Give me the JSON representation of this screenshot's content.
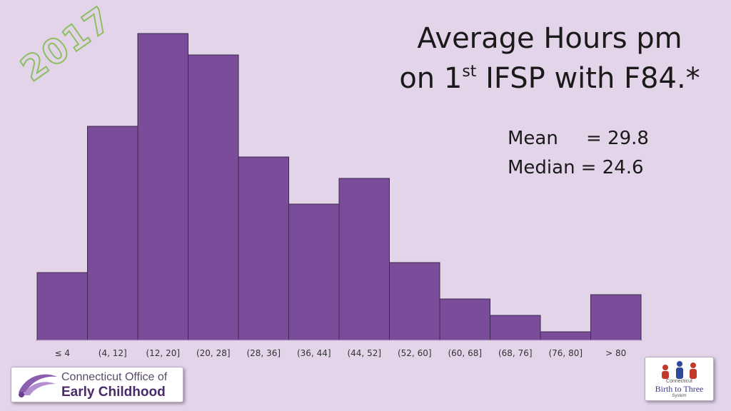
{
  "title": {
    "line1": "Average Hours pm",
    "line2_prefix": "on 1",
    "line2_sup": "st",
    "line2_suffix": " IFSP with F84.*"
  },
  "stats": {
    "mean_label": "Mean",
    "mean_value": "= 29.8",
    "median_label": "Median",
    "median_value": "= 24.6"
  },
  "stamp": "2017",
  "logos": {
    "left_line1": "Connecticut Office of",
    "left_line2": "Early Childhood",
    "right_line1": "Connecticut",
    "right_line2": "Birth to Three",
    "right_line3": "System"
  },
  "colors": {
    "bar_fill": "#7b4c99",
    "bar_stroke": "#3b2a4c",
    "background": "#e3d4ea"
  },
  "chart_data": {
    "type": "bar",
    "title": "Average Hours pm on 1st IFSP with F84.*",
    "xlabel": "",
    "ylabel": "",
    "grid": false,
    "categories": [
      "≤ 4",
      "(4, 12]",
      "(12, 20]",
      "(20, 28]",
      "(28, 36]",
      "(36, 44]",
      "(44, 52]",
      "(52, 60]",
      "(60, 68]",
      "(68, 76]",
      "(76, 80]",
      "> 80"
    ],
    "values": [
      95,
      300,
      430,
      400,
      257,
      191,
      227,
      109,
      58,
      35,
      12,
      64
    ],
    "ylim": [
      0,
      430
    ]
  }
}
